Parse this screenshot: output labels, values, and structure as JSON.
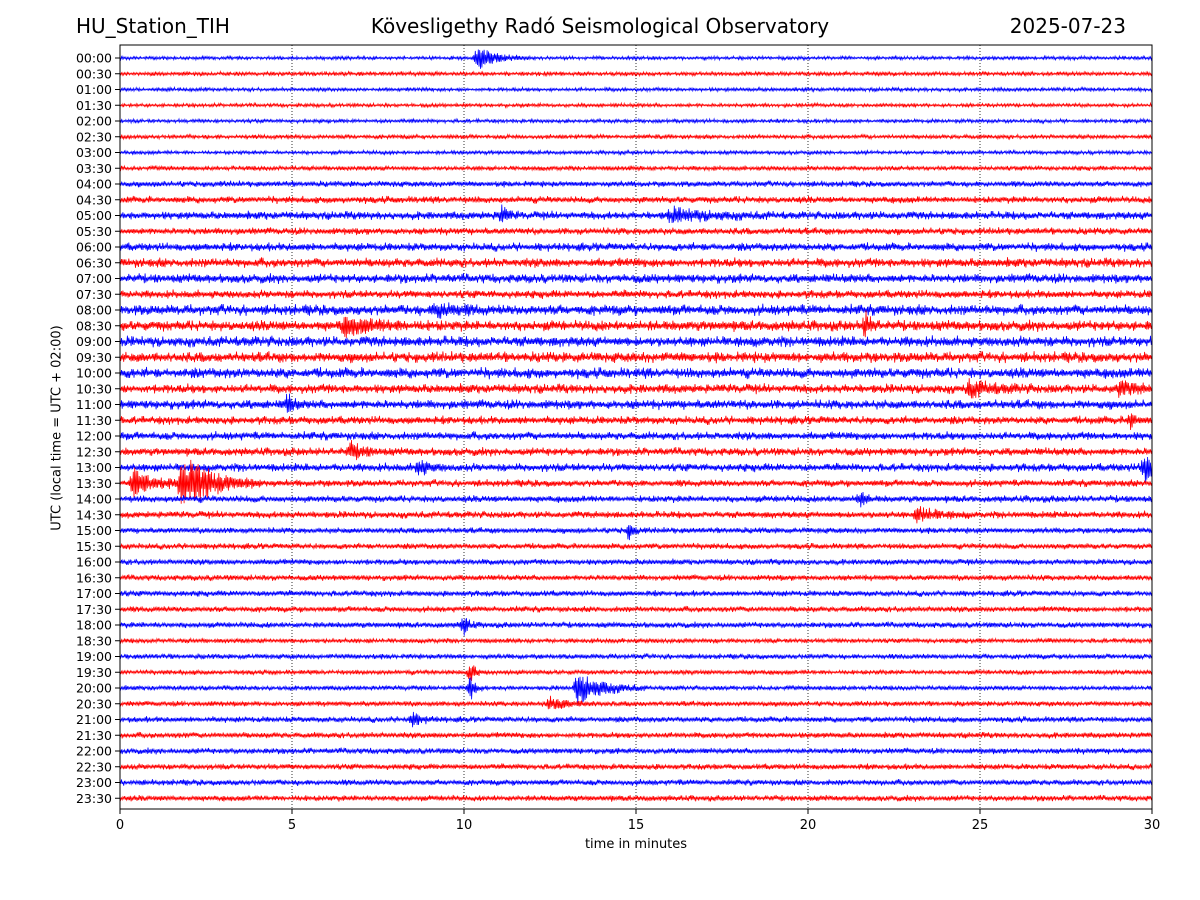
{
  "header": {
    "station": "HU_Station_TIH",
    "observatory": "Kövesligethy Radó Seismological Observatory",
    "date": "2025-07-23"
  },
  "chart_data": {
    "type": "line",
    "title": "Kövesligethy Radó Seismological Observatory",
    "xlabel": "time in minutes",
    "ylabel": "UTC (local time = UTC + 02:00)",
    "xlim": [
      0,
      30
    ],
    "xticks": [
      0,
      5,
      10,
      15,
      20,
      25,
      30
    ],
    "grid": "vertical dotted at x ticks",
    "colors": [
      "#0000ff",
      "#ff0000"
    ],
    "rows": [
      "00:00",
      "00:30",
      "01:00",
      "01:30",
      "02:00",
      "02:30",
      "03:00",
      "03:30",
      "04:00",
      "04:30",
      "05:00",
      "05:30",
      "06:00",
      "06:30",
      "07:00",
      "07:30",
      "08:00",
      "08:30",
      "09:00",
      "09:30",
      "10:00",
      "10:30",
      "11:00",
      "11:30",
      "12:00",
      "12:30",
      "13:00",
      "13:30",
      "14:00",
      "14:30",
      "15:00",
      "15:30",
      "16:00",
      "16:30",
      "17:00",
      "17:30",
      "18:00",
      "18:30",
      "19:00",
      "19:30",
      "20:00",
      "20:30",
      "21:00",
      "21:30",
      "22:00",
      "22:30",
      "23:00",
      "23:30"
    ],
    "noise_levels": [
      1.5,
      1.8,
      1.6,
      1.6,
      1.6,
      1.8,
      1.6,
      2,
      2.5,
      3,
      3.5,
      3,
      3.5,
      4,
      4,
      3.5,
      4.5,
      4.5,
      4.5,
      4.5,
      4.5,
      4,
      4,
      3.5,
      3.5,
      3.5,
      3.5,
      3,
      3,
      3,
      2.5,
      2.5,
      2.5,
      2.5,
      2.5,
      2.5,
      2.5,
      2,
      2.2,
      2,
      2,
      2.2,
      2.5,
      2.5,
      2.5,
      2.5,
      2.5,
      2.5
    ],
    "events": [
      {
        "row": "00:00",
        "minute": 10.4,
        "amplitude": 12,
        "duration": 1.5
      },
      {
        "row": "05:00",
        "minute": 11.1,
        "amplitude": 8,
        "duration": 0.5
      },
      {
        "row": "05:00",
        "minute": 16,
        "amplitude": 6,
        "duration": 3
      },
      {
        "row": "08:00",
        "minute": 9.2,
        "amplitude": 7,
        "duration": 1.5
      },
      {
        "row": "08:30",
        "minute": 6.5,
        "amplitude": 7,
        "duration": 3
      },
      {
        "row": "08:30",
        "minute": 21.7,
        "amplitude": 12,
        "duration": 0.4
      },
      {
        "row": "10:30",
        "minute": 24.7,
        "amplitude": 7,
        "duration": 2
      },
      {
        "row": "10:30",
        "minute": 29,
        "amplitude": 6,
        "duration": 1.5
      },
      {
        "row": "11:00",
        "minute": 4.9,
        "amplitude": 10,
        "duration": 0.4
      },
      {
        "row": "11:30",
        "minute": 29.4,
        "amplitude": 8,
        "duration": 0.4
      },
      {
        "row": "12:30",
        "minute": 6.7,
        "amplitude": 8,
        "duration": 1
      },
      {
        "row": "13:00",
        "minute": 29.8,
        "amplitude": 16,
        "duration": 0.6
      },
      {
        "row": "13:00",
        "minute": 8.7,
        "amplitude": 7,
        "duration": 0.8
      },
      {
        "row": "13:30",
        "minute": 1.8,
        "amplitude": 28,
        "duration": 2.5
      },
      {
        "row": "13:30",
        "minute": 0.4,
        "amplitude": 14,
        "duration": 1.5
      },
      {
        "row": "14:00",
        "minute": 21.5,
        "amplitude": 7,
        "duration": 0.5
      },
      {
        "row": "14:30",
        "minute": 23.2,
        "amplitude": 7,
        "duration": 1.5
      },
      {
        "row": "15:00",
        "minute": 14.8,
        "amplitude": 8,
        "duration": 0.4
      },
      {
        "row": "18:00",
        "minute": 10,
        "amplitude": 10,
        "duration": 0.4
      },
      {
        "row": "19:30",
        "minute": 10.2,
        "amplitude": 9,
        "duration": 0.5
      },
      {
        "row": "20:00",
        "minute": 10.2,
        "amplitude": 12,
        "duration": 0.4
      },
      {
        "row": "20:00",
        "minute": 13.3,
        "amplitude": 16,
        "duration": 2
      },
      {
        "row": "20:30",
        "minute": 12.5,
        "amplitude": 6,
        "duration": 1.5
      },
      {
        "row": "21:00",
        "minute": 8.5,
        "amplitude": 6,
        "duration": 0.8
      }
    ]
  }
}
